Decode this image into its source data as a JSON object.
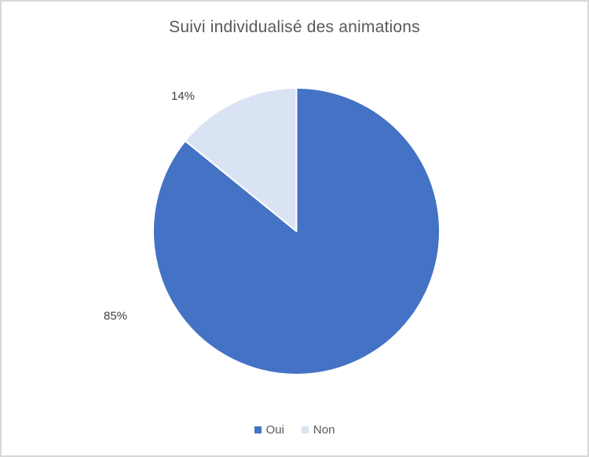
{
  "chart_data": {
    "type": "pie",
    "title": "Suivi individualisé des animations",
    "legend_position": "bottom",
    "start_angle_deg": 0,
    "direction": "clockwise",
    "slice_border_color": "#ffffff",
    "slices": [
      {
        "label": "Oui",
        "value": 85,
        "display": "85%",
        "color": "#4472c4"
      },
      {
        "label": "Non",
        "value": 14,
        "display": "14%",
        "color": "#dae3f3"
      }
    ]
  }
}
